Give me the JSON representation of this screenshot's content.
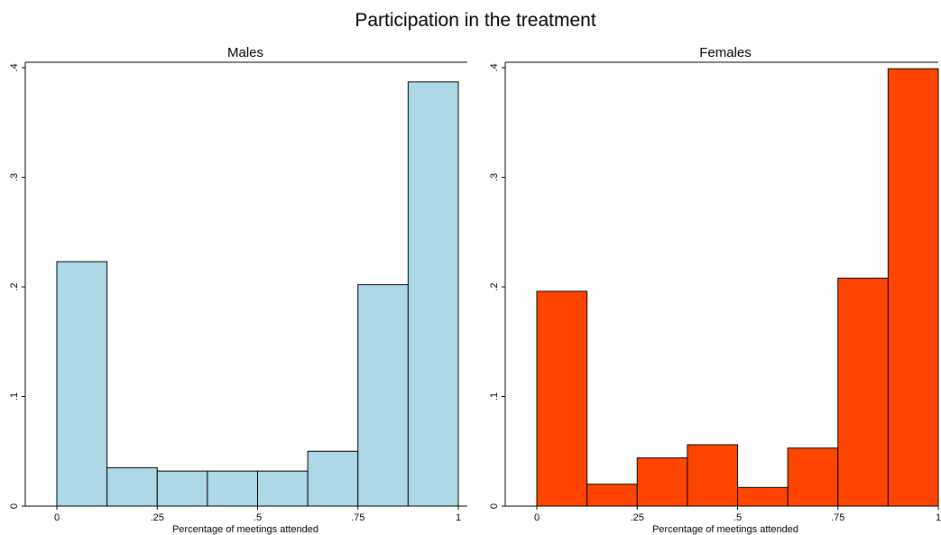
{
  "chart_data": {
    "type": "bar",
    "title": "Participation in the treatment",
    "panels": [
      {
        "title": "Males",
        "xlabel": "Percentage of meetings attended",
        "bin_edges": [
          0,
          0.125,
          0.25,
          0.375,
          0.5,
          0.625,
          0.75,
          0.875,
          1
        ],
        "values": [
          0.223,
          0.035,
          0.032,
          0.032,
          0.032,
          0.05,
          0.202,
          0.387
        ],
        "fill_color": "#add8e6",
        "xlim": [
          0,
          1
        ],
        "ylim": [
          0,
          0.4
        ],
        "x_ticks": [
          0,
          0.25,
          0.5,
          0.75,
          1
        ],
        "x_tick_labels": [
          "0",
          ".25",
          ".5",
          ".75",
          "1"
        ],
        "y_ticks": [
          0,
          0.1,
          0.2,
          0.3,
          0.4
        ],
        "y_tick_labels": [
          "0",
          ".1",
          ".2",
          ".3",
          ".4"
        ]
      },
      {
        "title": "Females",
        "xlabel": "Percentage of meetings attended",
        "bin_edges": [
          0,
          0.125,
          0.25,
          0.375,
          0.5,
          0.625,
          0.75,
          0.875,
          1
        ],
        "values": [
          0.196,
          0.02,
          0.044,
          0.056,
          0.017,
          0.053,
          0.208,
          0.399
        ],
        "fill_color": "#ff4500",
        "xlim": [
          0,
          1
        ],
        "ylim": [
          0,
          0.4
        ],
        "x_ticks": [
          0,
          0.25,
          0.5,
          0.75,
          1
        ],
        "x_tick_labels": [
          "0",
          ".25",
          ".5",
          ".75",
          "1"
        ],
        "y_ticks": [
          0,
          0.1,
          0.2,
          0.3,
          0.4
        ],
        "y_tick_labels": [
          "0",
          ".1",
          ".2",
          ".3",
          ".4"
        ]
      }
    ],
    "grid": false,
    "legend": "none"
  }
}
